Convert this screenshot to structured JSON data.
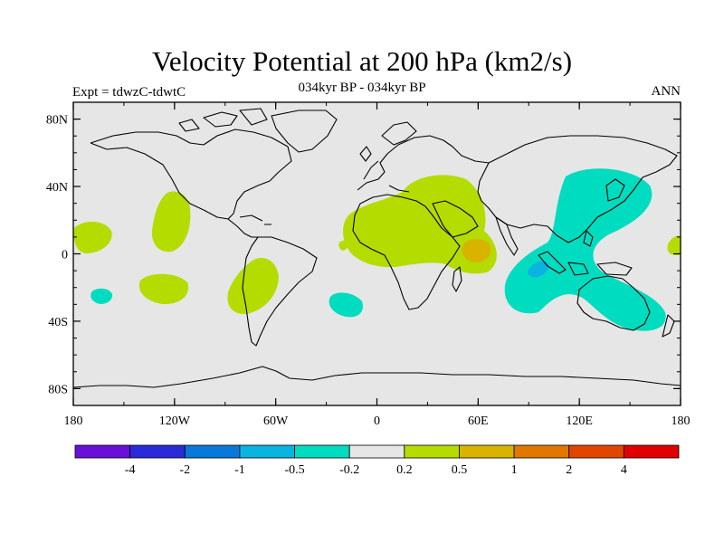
{
  "header": {
    "title": "Velocity Potential at 200 hPa (km2/s)",
    "subtitle": "034kyr BP - 034kyr BP",
    "left_label": "Expt = tdwzC-tdwtC",
    "right_label": "ANN"
  },
  "map": {
    "projection": "cylindrical-equidistant",
    "lon_range": [
      -180,
      180
    ],
    "lat_range": [
      -90,
      90
    ],
    "background_color": "#e6e6e6",
    "lat_ticks": [
      {
        "value": 80,
        "label": "80N"
      },
      {
        "value": 40,
        "label": "40N"
      },
      {
        "value": 0,
        "label": "0"
      },
      {
        "value": -40,
        "label": "40S"
      },
      {
        "value": -80,
        "label": "80S"
      }
    ],
    "lon_ticks": [
      {
        "value": -180,
        "label": "180"
      },
      {
        "value": -120,
        "label": "120W"
      },
      {
        "value": -60,
        "label": "60W"
      },
      {
        "value": 0,
        "label": "0"
      },
      {
        "value": 60,
        "label": "60E"
      },
      {
        "value": 120,
        "label": "120E"
      },
      {
        "value": 180,
        "label": "180"
      }
    ]
  },
  "colorbar": {
    "colors": [
      "#6a0fd8",
      "#2a2ad8",
      "#0a78d8",
      "#0ab4e0",
      "#00dcc0",
      "#e6e6e6",
      "#b4dc00",
      "#d8b400",
      "#e07800",
      "#e04600",
      "#e00000"
    ],
    "labels": [
      "-4",
      "-2",
      "-1",
      "-0.5",
      "-0.2",
      "0.2",
      "0.5",
      "1",
      "2",
      "4"
    ]
  }
}
